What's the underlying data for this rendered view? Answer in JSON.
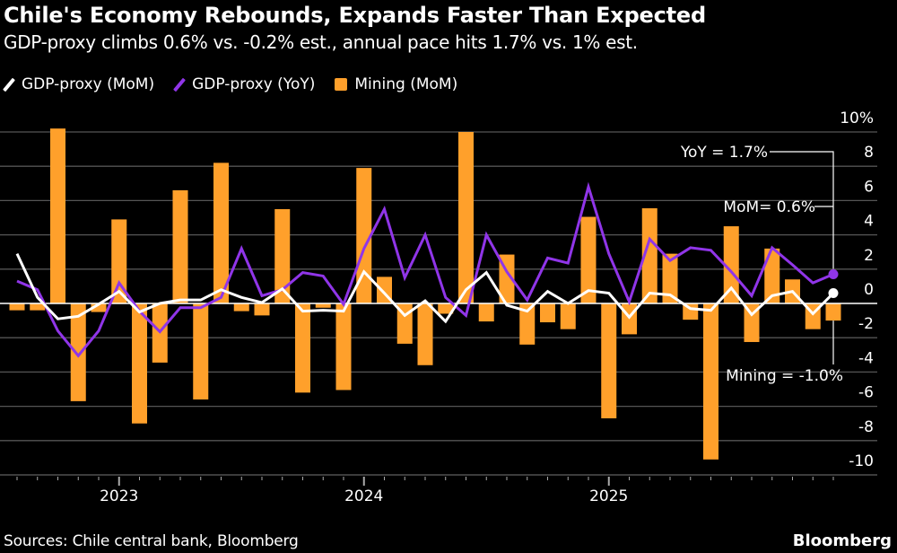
{
  "header": {
    "title": "Chile's Economy Rebounds, Expands Faster Than Expected",
    "subtitle": "GDP-proxy climbs 0.6% vs. -0.2% est., annual pace hits 1.7% vs. 1% est."
  },
  "footer": {
    "source": "Sources: Chile central bank, Bloomberg",
    "brand": "Bloomberg"
  },
  "chart_data": {
    "type": "bar+line",
    "title": "",
    "xlabel": "",
    "ylabel": "",
    "y_unit_label": "10%",
    "ylim": [
      -10,
      10
    ],
    "yticks": [
      10,
      8,
      6,
      4,
      2,
      0,
      -2,
      -4,
      -6,
      -8,
      -10
    ],
    "grid": true,
    "legend_position": "top-left",
    "x_start": "2022-08",
    "x_end": "2025-12",
    "xtick_labels": [
      "2023",
      "2024",
      "2025"
    ],
    "x": [
      "2022-08",
      "2022-09",
      "2022-10",
      "2022-11",
      "2022-12",
      "2023-01",
      "2023-02",
      "2023-03",
      "2023-04",
      "2023-05",
      "2023-06",
      "2023-07",
      "2023-08",
      "2023-09",
      "2023-10",
      "2023-11",
      "2023-12",
      "2024-01",
      "2024-02",
      "2024-03",
      "2024-04",
      "2024-05",
      "2024-06",
      "2024-07",
      "2024-08",
      "2024-09",
      "2024-10",
      "2024-11",
      "2024-12",
      "2025-01",
      "2025-02",
      "2025-03",
      "2025-04",
      "2025-05",
      "2025-06",
      "2025-07",
      "2025-08",
      "2025-09",
      "2025-10",
      "2025-11",
      "2025-12"
    ],
    "series": [
      {
        "name": "GDP-proxy (MoM)",
        "kind": "line",
        "color": "#ffffff",
        "values": [
          2.9,
          0.35,
          -0.9,
          -0.75,
          -0.05,
          0.7,
          -0.5,
          0.0,
          0.2,
          0.2,
          0.8,
          0.35,
          0.05,
          0.85,
          -0.45,
          -0.4,
          -0.45,
          1.85,
          0.6,
          -0.7,
          0.15,
          -1.05,
          0.8,
          1.8,
          -0.1,
          -0.45,
          0.7,
          0.0,
          0.75,
          0.6,
          -0.8,
          0.6,
          0.5,
          -0.3,
          -0.4,
          0.9,
          -0.65,
          0.45,
          0.7,
          -0.6,
          0.6
        ]
      },
      {
        "name": "GDP-proxy (YoY)",
        "kind": "line",
        "color": "#9035e8",
        "values": [
          1.3,
          0.8,
          -1.6,
          -3.05,
          -1.6,
          1.2,
          -0.45,
          -1.65,
          -0.25,
          -0.25,
          0.35,
          3.2,
          0.45,
          0.8,
          1.8,
          1.6,
          -0.05,
          3.2,
          5.5,
          1.5,
          4.0,
          0.35,
          -0.7,
          4.0,
          1.85,
          0.2,
          2.65,
          2.35,
          6.8,
          2.9,
          0.1,
          3.75,
          2.5,
          3.25,
          3.1,
          1.85,
          0.45,
          3.25,
          2.25,
          1.2,
          1.7
        ]
      },
      {
        "name": "Mining (MoM)",
        "kind": "bar",
        "color": "#ffa02b",
        "values": [
          -0.4,
          -0.4,
          10.2,
          -5.7,
          -0.5,
          4.9,
          -7.0,
          -3.45,
          6.6,
          -5.6,
          8.2,
          -0.45,
          -0.7,
          5.5,
          -5.2,
          -0.25,
          -5.05,
          7.9,
          1.55,
          -2.35,
          -3.6,
          -0.6,
          10.0,
          -1.05,
          2.85,
          -2.4,
          -1.1,
          -1.5,
          5.05,
          -6.7,
          -1.8,
          5.55,
          2.9,
          -0.95,
          -9.1,
          4.5,
          -2.25,
          3.2,
          1.4,
          -1.5,
          -1.0
        ]
      }
    ],
    "annotations": [
      {
        "text": "YoY = 1.7%",
        "series": "GDP-proxy (YoY)",
        "x": "2025-12"
      },
      {
        "text": "MoM= 0.6%",
        "series": "GDP-proxy (MoM)",
        "x": "2025-12"
      },
      {
        "text": "Mining = -1.0%",
        "series": "Mining (MoM)",
        "x": "2025-12"
      }
    ]
  }
}
